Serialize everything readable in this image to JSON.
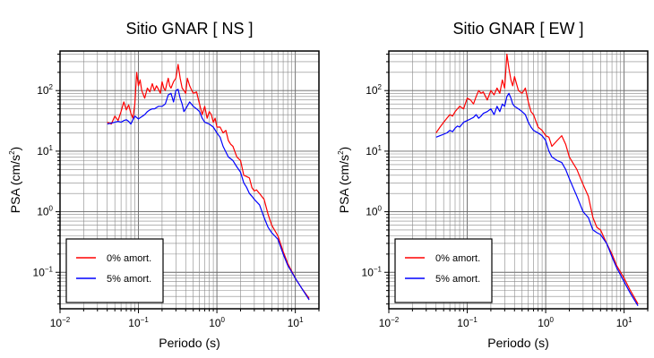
{
  "chart_data": [
    {
      "type": "line",
      "title": "Sitio GNAR [ NS ]",
      "xlabel": "Periodo (s)",
      "ylabel_main": "PSA (cm/s",
      "ylabel_sup": "2",
      "ylabel_close": ")",
      "xscale": "log",
      "yscale": "log",
      "xlim": [
        0.01,
        20
      ],
      "ylim": [
        0.025,
        450
      ],
      "grid": true,
      "legend_position": "bottom-left",
      "x_ticks": [
        {
          "base": "10",
          "exp": "−2"
        },
        {
          "base": "10",
          "exp": "−1"
        },
        {
          "base": "10",
          "exp": "0"
        },
        {
          "base": "10",
          "exp": "1"
        }
      ],
      "y_ticks": [
        {
          "base": "10",
          "exp": "−1"
        },
        {
          "base": "10",
          "exp": "0"
        },
        {
          "base": "10",
          "exp": "1"
        },
        {
          "base": "10",
          "exp": "2"
        }
      ],
      "series": [
        {
          "name": "0% amort.",
          "color": "#ff0000",
          "x": [
            0.04,
            0.045,
            0.05,
            0.055,
            0.06,
            0.065,
            0.07,
            0.075,
            0.08,
            0.085,
            0.09,
            0.095,
            0.1,
            0.105,
            0.11,
            0.12,
            0.13,
            0.14,
            0.15,
            0.16,
            0.17,
            0.18,
            0.19,
            0.2,
            0.21,
            0.22,
            0.23,
            0.24,
            0.25,
            0.26,
            0.28,
            0.3,
            0.32,
            0.34,
            0.36,
            0.38,
            0.4,
            0.42,
            0.45,
            0.48,
            0.5,
            0.55,
            0.6,
            0.65,
            0.7,
            0.75,
            0.8,
            0.85,
            0.9,
            0.95,
            1.0,
            1.1,
            1.2,
            1.3,
            1.4,
            1.5,
            1.6,
            1.8,
            2.0,
            2.2,
            2.4,
            2.6,
            2.8,
            3.0,
            3.2,
            3.5,
            4.0,
            4.5,
            5.0,
            6.0,
            7.0,
            8.0,
            10.0,
            12.0,
            15.0
          ],
          "y": [
            30,
            28,
            38,
            32,
            45,
            65,
            48,
            58,
            42,
            35,
            60,
            200,
            120,
            150,
            100,
            75,
            110,
            95,
            130,
            100,
            120,
            105,
            90,
            140,
            110,
            100,
            130,
            160,
            120,
            110,
            140,
            160,
            270,
            160,
            110,
            100,
            90,
            160,
            120,
            100,
            90,
            95,
            60,
            40,
            55,
            35,
            45,
            40,
            30,
            35,
            25,
            25,
            20,
            22,
            15,
            13,
            12,
            8,
            7,
            4,
            3.8,
            3.6,
            2.5,
            2.2,
            2.3,
            2.0,
            1.6,
            0.9,
            0.6,
            0.4,
            0.22,
            0.14,
            0.08,
            0.055,
            0.037
          ]
        },
        {
          "name": "5% amort.",
          "color": "#0000ff",
          "x": [
            0.04,
            0.045,
            0.05,
            0.055,
            0.06,
            0.065,
            0.07,
            0.075,
            0.08,
            0.085,
            0.09,
            0.1,
            0.11,
            0.12,
            0.13,
            0.14,
            0.15,
            0.16,
            0.18,
            0.2,
            0.22,
            0.24,
            0.26,
            0.28,
            0.3,
            0.32,
            0.34,
            0.36,
            0.38,
            0.4,
            0.45,
            0.5,
            0.55,
            0.6,
            0.65,
            0.7,
            0.8,
            0.9,
            1.0,
            1.1,
            1.2,
            1.4,
            1.6,
            1.8,
            2.0,
            2.2,
            2.4,
            2.6,
            2.8,
            3.0,
            3.5,
            4.0,
            4.5,
            5.0,
            6.0,
            7.0,
            8.0,
            10.0,
            12.0,
            15.0
          ],
          "y": [
            28,
            29,
            30,
            31,
            30,
            32,
            33,
            31,
            28,
            33,
            38,
            34,
            37,
            40,
            45,
            48,
            50,
            50,
            55,
            55,
            60,
            85,
            90,
            65,
            100,
            105,
            75,
            60,
            45,
            50,
            65,
            55,
            50,
            45,
            35,
            30,
            28,
            25,
            20,
            17,
            12,
            8,
            7,
            5.5,
            4.5,
            3,
            2.5,
            2.0,
            1.8,
            1.6,
            1.3,
            0.8,
            0.55,
            0.45,
            0.35,
            0.2,
            0.13,
            0.08,
            0.055,
            0.035
          ]
        }
      ]
    },
    {
      "type": "line",
      "title": "Sitio GNAR [ EW ]",
      "xlabel": "Periodo (s)",
      "ylabel_main": "PSA (cm/s",
      "ylabel_sup": "2",
      "ylabel_close": ")",
      "xscale": "log",
      "yscale": "log",
      "xlim": [
        0.01,
        20
      ],
      "ylim": [
        0.025,
        450
      ],
      "grid": true,
      "legend_position": "bottom-left",
      "x_ticks": [
        {
          "base": "10",
          "exp": "−2"
        },
        {
          "base": "10",
          "exp": "−1"
        },
        {
          "base": "10",
          "exp": "0"
        },
        {
          "base": "10",
          "exp": "1"
        }
      ],
      "y_ticks": [
        {
          "base": "10",
          "exp": "−1"
        },
        {
          "base": "10",
          "exp": "0"
        },
        {
          "base": "10",
          "exp": "1"
        },
        {
          "base": "10",
          "exp": "2"
        }
      ],
      "series": [
        {
          "name": "0% amort.",
          "color": "#ff0000",
          "x": [
            0.04,
            0.045,
            0.05,
            0.055,
            0.06,
            0.065,
            0.07,
            0.075,
            0.08,
            0.09,
            0.1,
            0.11,
            0.12,
            0.13,
            0.14,
            0.15,
            0.16,
            0.18,
            0.2,
            0.22,
            0.24,
            0.26,
            0.28,
            0.3,
            0.32,
            0.34,
            0.36,
            0.38,
            0.4,
            0.45,
            0.5,
            0.55,
            0.6,
            0.65,
            0.7,
            0.8,
            0.9,
            1.0,
            1.1,
            1.2,
            1.4,
            1.6,
            1.8,
            2.0,
            2.5,
            3.0,
            3.5,
            4.0,
            4.5,
            5.0,
            6.0,
            7.0,
            8.0,
            10.0,
            12.0,
            15.0
          ],
          "y": [
            20,
            25,
            30,
            35,
            40,
            38,
            45,
            50,
            55,
            50,
            75,
            70,
            60,
            80,
            100,
            90,
            95,
            70,
            100,
            85,
            110,
            90,
            150,
            110,
            400,
            230,
            150,
            120,
            170,
            100,
            90,
            110,
            65,
            45,
            40,
            25,
            22,
            18,
            17,
            12,
            15,
            18,
            13,
            8,
            5,
            2.8,
            1.8,
            0.8,
            0.55,
            0.5,
            0.3,
            0.2,
            0.13,
            0.08,
            0.05,
            0.03
          ]
        },
        {
          "name": "5% amort.",
          "color": "#0000ff",
          "x": [
            0.04,
            0.045,
            0.05,
            0.055,
            0.06,
            0.065,
            0.07,
            0.075,
            0.08,
            0.09,
            0.1,
            0.11,
            0.12,
            0.13,
            0.14,
            0.15,
            0.16,
            0.18,
            0.2,
            0.22,
            0.24,
            0.26,
            0.28,
            0.3,
            0.32,
            0.34,
            0.36,
            0.38,
            0.4,
            0.45,
            0.5,
            0.55,
            0.6,
            0.65,
            0.7,
            0.8,
            0.9,
            1.0,
            1.1,
            1.2,
            1.4,
            1.6,
            1.8,
            2.0,
            2.5,
            3.0,
            3.5,
            4.0,
            4.5,
            5.0,
            6.0,
            7.0,
            8.0,
            10.0,
            12.0,
            15.0
          ],
          "y": [
            17,
            18,
            19,
            20,
            22,
            21,
            24,
            26,
            25,
            30,
            32,
            34,
            36,
            40,
            35,
            38,
            42,
            45,
            50,
            40,
            55,
            45,
            60,
            55,
            80,
            90,
            75,
            60,
            55,
            50,
            45,
            40,
            30,
            25,
            22,
            20,
            18,
            15,
            10,
            8,
            7,
            6.5,
            5,
            3.5,
            1.8,
            1.0,
            0.8,
            0.5,
            0.45,
            0.42,
            0.3,
            0.18,
            0.12,
            0.07,
            0.045,
            0.028
          ]
        }
      ]
    }
  ]
}
